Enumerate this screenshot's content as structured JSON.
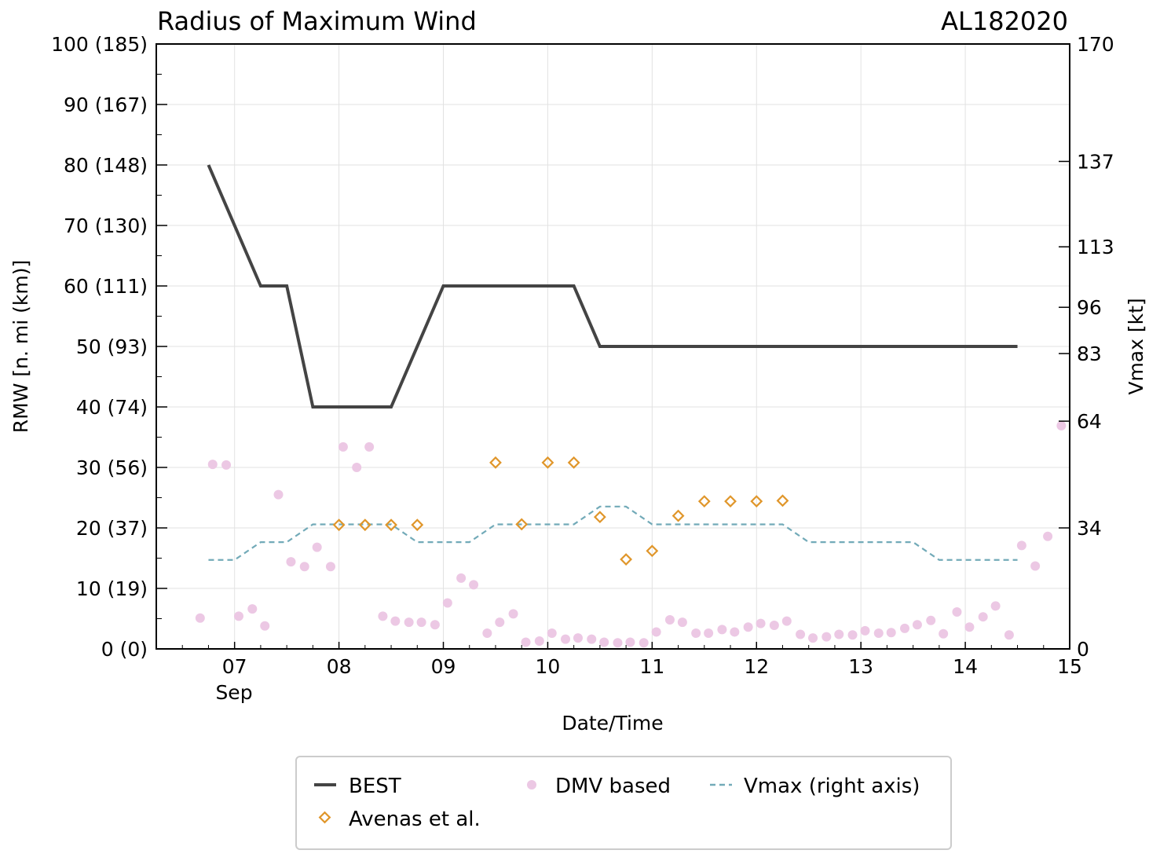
{
  "chart_data": {
    "type": "line",
    "title": "Radius of Maximum Wind",
    "storm_id": "AL182020",
    "xlabel": "Date/Time",
    "ylabel": "RMW [n. mi (km)]",
    "y2label": "Vmax [kt]",
    "xlim": [
      6.25,
      15.0
    ],
    "ylim": [
      0,
      100
    ],
    "y2lim": [
      0,
      170
    ],
    "grid": true,
    "x_ticks": [
      {
        "value": 7,
        "label": "07"
      },
      {
        "value": 8,
        "label": "08"
      },
      {
        "value": 9,
        "label": "09"
      },
      {
        "value": 10,
        "label": "10"
      },
      {
        "value": 11,
        "label": "11"
      },
      {
        "value": 12,
        "label": "12"
      },
      {
        "value": 13,
        "label": "13"
      },
      {
        "value": 14,
        "label": "14"
      },
      {
        "value": 15,
        "label": "15"
      }
    ],
    "x_month_label": "Sep",
    "y_ticks": [
      {
        "value": 0,
        "label": "0 (0)"
      },
      {
        "value": 10,
        "label": "10 (19)"
      },
      {
        "value": 20,
        "label": "20 (37)"
      },
      {
        "value": 30,
        "label": "30 (56)"
      },
      {
        "value": 40,
        "label": "40 (74)"
      },
      {
        "value": 50,
        "label": "50 (93)"
      },
      {
        "value": 60,
        "label": "60 (111)"
      },
      {
        "value": 70,
        "label": "70 (130)"
      },
      {
        "value": 80,
        "label": "80 (148)"
      },
      {
        "value": 90,
        "label": "90 (167)"
      },
      {
        "value": 100,
        "label": "100 (185)"
      }
    ],
    "y2_ticks": [
      {
        "value": 0,
        "label": "0"
      },
      {
        "value": 34,
        "label": "34"
      },
      {
        "value": 64,
        "label": "64"
      },
      {
        "value": 83,
        "label": "83"
      },
      {
        "value": 96,
        "label": "96"
      },
      {
        "value": 113,
        "label": "113"
      },
      {
        "value": 137,
        "label": "137"
      },
      {
        "value": 170,
        "label": "170"
      }
    ],
    "series": [
      {
        "name": "BEST",
        "kind": "line",
        "color": "#444444",
        "x": [
          6.75,
          7.25,
          7.5,
          7.75,
          8.5,
          9.0,
          10.25,
          10.5,
          14.5
        ],
        "y": [
          80,
          60,
          60,
          40,
          40,
          60,
          60,
          50,
          50
        ]
      },
      {
        "name": "Avenas et al.",
        "kind": "marker",
        "color": "#e0962a",
        "x": [
          8.0,
          8.25,
          8.5,
          8.75,
          9.5,
          9.75,
          10.0,
          10.25,
          10.5,
          10.75,
          11.0,
          11.25,
          11.5,
          11.75,
          12.0,
          12.25
        ],
        "y": [
          20.5,
          20.5,
          20.5,
          20.5,
          30.8,
          20.6,
          30.8,
          30.8,
          21.8,
          14.8,
          16.2,
          22.0,
          24.4,
          24.4,
          24.4,
          24.5
        ]
      },
      {
        "name": "DMV based",
        "kind": "marker",
        "color": "#ecc8e4",
        "x": [
          6.67,
          6.79,
          6.92,
          7.04,
          7.17,
          7.29,
          7.42,
          7.54,
          7.67,
          7.79,
          7.92,
          8.04,
          8.17,
          8.29,
          8.42,
          8.54,
          8.67,
          8.79,
          8.92,
          9.04,
          9.17,
          9.29,
          9.42,
          9.54,
          9.67,
          9.79,
          9.92,
          10.04,
          10.17,
          10.29,
          10.42,
          10.54,
          10.67,
          10.79,
          10.92,
          11.04,
          11.17,
          11.29,
          11.42,
          11.54,
          11.67,
          11.79,
          11.92,
          12.04,
          12.17,
          12.29,
          12.42,
          12.54,
          12.67,
          12.79,
          12.92,
          13.04,
          13.17,
          13.29,
          13.42,
          13.54,
          13.67,
          13.79,
          13.92,
          14.04,
          14.17,
          14.29,
          14.42,
          14.54,
          14.67,
          14.79,
          14.92
        ],
        "y": [
          5.1,
          30.5,
          30.4,
          5.4,
          6.6,
          3.8,
          25.5,
          14.4,
          13.6,
          16.8,
          13.6,
          33.4,
          30.0,
          33.4,
          5.4,
          4.6,
          4.4,
          4.4,
          4.0,
          7.6,
          11.7,
          10.6,
          2.6,
          4.4,
          5.8,
          1.1,
          1.3,
          2.6,
          1.6,
          1.8,
          1.6,
          1.1,
          1.0,
          1.1,
          1.0,
          2.8,
          4.8,
          4.4,
          2.6,
          2.6,
          3.2,
          2.8,
          3.6,
          4.2,
          3.9,
          4.6,
          2.4,
          1.8,
          2.0,
          2.4,
          2.3,
          3.0,
          2.6,
          2.7,
          3.4,
          4.0,
          4.7,
          2.5,
          6.1,
          3.6,
          5.3,
          7.1,
          2.3,
          17.1,
          13.7,
          18.6,
          36.9
        ]
      },
      {
        "name": "Vmax (right axis)",
        "kind": "dashed-line",
        "axis": "right",
        "color": "#72aab8",
        "x": [
          6.75,
          7.0,
          7.25,
          7.5,
          7.75,
          8.5,
          8.75,
          9.25,
          9.5,
          10.25,
          10.5,
          10.75,
          11.0,
          12.25,
          12.5,
          13.5,
          13.75,
          14.5
        ],
        "y": [
          25,
          25,
          30,
          30,
          35,
          35,
          30,
          30,
          35,
          35,
          40,
          40,
          35,
          35,
          30,
          30,
          25,
          25
        ]
      }
    ],
    "legend": {
      "placement": "bottom-center",
      "entries": [
        "BEST",
        "DMV based",
        "Vmax (right axis)",
        "Avenas et al."
      ]
    }
  }
}
